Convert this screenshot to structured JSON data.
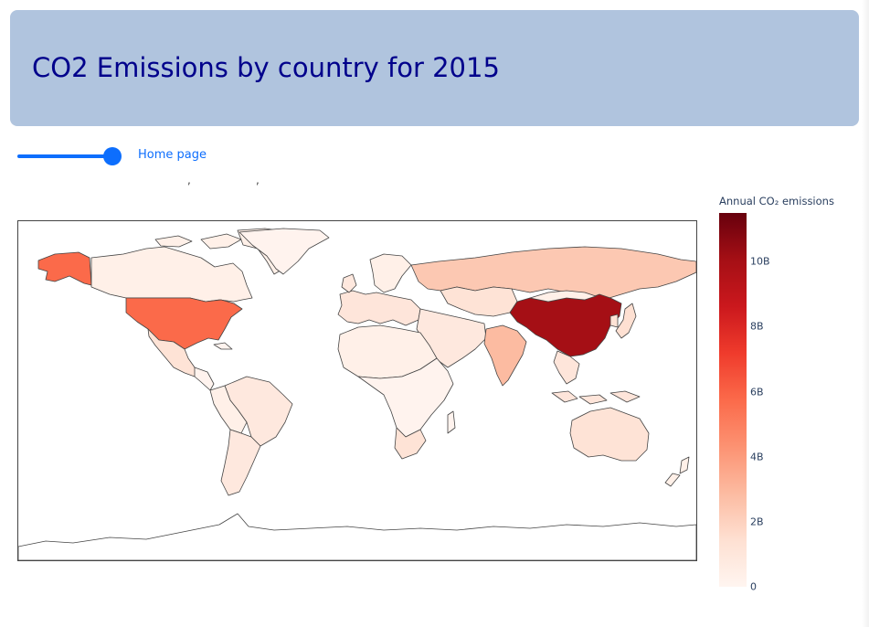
{
  "header": {
    "title": "CO2 Emissions by country for 2015"
  },
  "controls": {
    "slider_value_fraction": 0.9,
    "home_link_label": "Home page"
  },
  "colors": {
    "header_bg": "#b0c4de",
    "title_color": "#00008b",
    "accent": "#0d6efd",
    "border": "#444444"
  },
  "map": {
    "projection": "equirectangular",
    "colorscale": "Reds",
    "legend_title": "Annual CO₂ emissions",
    "ticks": [
      "0",
      "2B",
      "4B",
      "6B",
      "8B",
      "10B"
    ],
    "tick_values": [
      0,
      2,
      4,
      6,
      8,
      10
    ],
    "range_max": 11.5,
    "countries": [
      {
        "name": "China",
        "value": 9.9
      },
      {
        "name": "United States",
        "value": 5.4
      },
      {
        "name": "India",
        "value": 2.3
      },
      {
        "name": "Russia",
        "value": 1.7
      },
      {
        "name": "Japan",
        "value": 1.2
      }
    ]
  }
}
